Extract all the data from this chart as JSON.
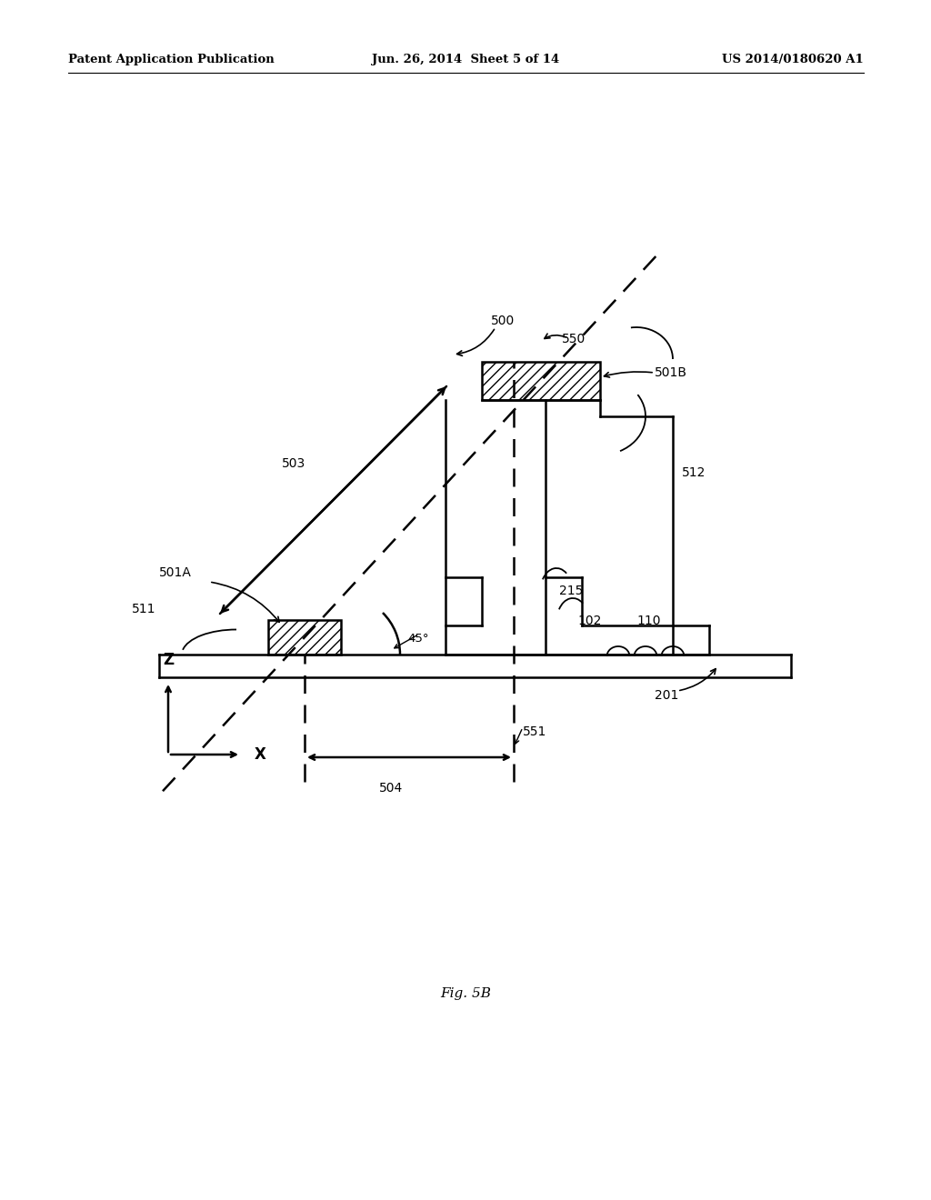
{
  "header_left": "Patent Application Publication",
  "header_mid": "Jun. 26, 2014  Sheet 5 of 14",
  "header_right": "US 2014/0180620 A1",
  "fig_label": "Fig. 5B",
  "background": "#ffffff",
  "line_color": "#000000",
  "label_fontsize": 10,
  "header_fontsize": 9.5
}
